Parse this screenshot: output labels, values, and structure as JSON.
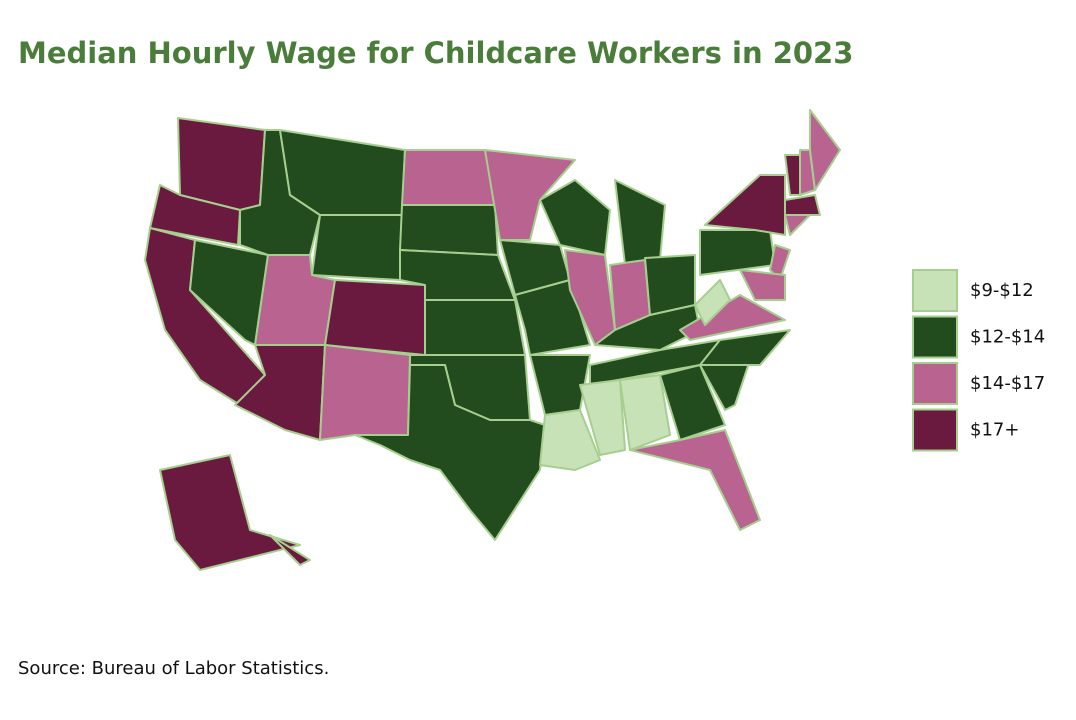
{
  "title": "Median Hourly Wage for Childcare Workers in 2023",
  "legend": [
    {
      "label": "$9-$12",
      "color": "#c8e2b8"
    },
    {
      "label": "$12-$14",
      "color": "#224b1e"
    },
    {
      "label": "$14-$17",
      "color": "#b96390"
    },
    {
      "label": "$17+",
      "color": "#6b1a3f"
    }
  ],
  "source": "Source: Bureau of Labor Statistics."
}
